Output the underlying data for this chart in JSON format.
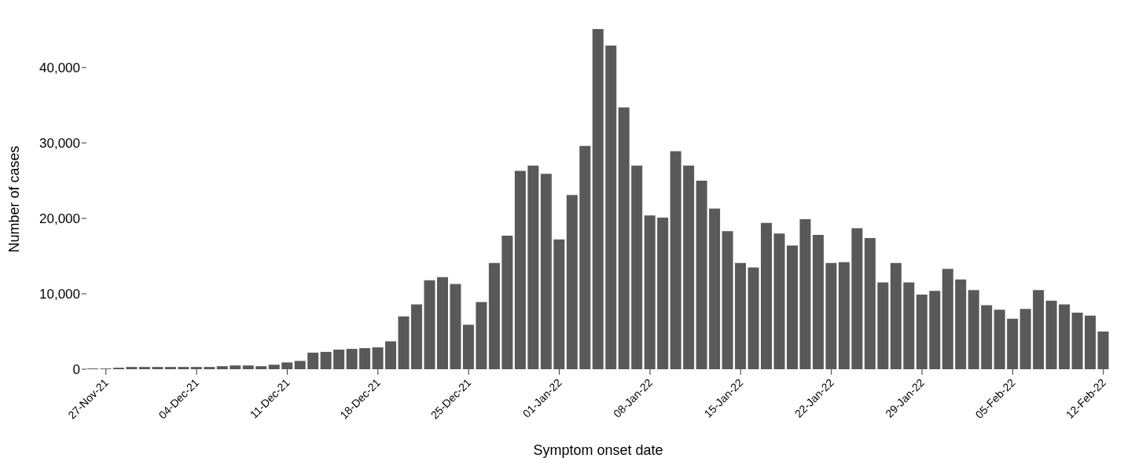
{
  "chart_data": {
    "type": "bar",
    "xlabel": "Symptom onset date",
    "ylabel": "Number of cases",
    "color": "#595959",
    "categories": [
      null,
      "27-Nov-21",
      null,
      null,
      null,
      null,
      null,
      null,
      "04-Dec-21",
      null,
      null,
      null,
      null,
      null,
      null,
      "11-Dec-21",
      null,
      null,
      null,
      null,
      null,
      null,
      "18-Dec-21",
      null,
      null,
      null,
      null,
      null,
      null,
      "25-Dec-21",
      null,
      null,
      null,
      null,
      null,
      null,
      "01-Jan-22",
      null,
      null,
      null,
      null,
      null,
      null,
      "08-Jan-22",
      null,
      null,
      null,
      null,
      null,
      null,
      "15-Jan-22",
      null,
      null,
      null,
      null,
      null,
      null,
      "22-Jan-22",
      null,
      null,
      null,
      null,
      null,
      null,
      "29-Jan-22",
      null,
      null,
      null,
      null,
      null,
      null,
      "05-Feb-22",
      null,
      null,
      null,
      null,
      null,
      null,
      "12-Feb-22"
    ],
    "values": [
      100,
      100,
      200,
      300,
      300,
      300,
      300,
      300,
      300,
      300,
      400,
      500,
      500,
      400,
      600,
      900,
      1100,
      2200,
      2300,
      2600,
      2700,
      2800,
      2900,
      3700,
      7000,
      8600,
      11800,
      12200,
      11300,
      5900,
      8900,
      14100,
      17700,
      26300,
      27000,
      25900,
      17200,
      23100,
      29600,
      45100,
      42900,
      34700,
      27000,
      20400,
      20100,
      28900,
      27000,
      25000,
      21300,
      18300,
      14100,
      13500,
      19400,
      18000,
      16400,
      19900,
      17800,
      14100,
      14200,
      18700,
      17400,
      11500,
      14100,
      11500,
      9900,
      10400,
      13300,
      11900,
      10500,
      8500,
      7900,
      6700,
      8000,
      10500,
      9100,
      8600,
      7500,
      7100,
      5000
    ],
    "ylim": [
      0,
      45100
    ],
    "yticks": [
      0,
      {
        "value": 10000,
        "label": "10,000"
      },
      {
        "value": 20000,
        "label": "20,000"
      },
      {
        "value": 30000,
        "label": "30,000"
      },
      {
        "value": 40000,
        "label": "40,000"
      }
    ],
    "grid": false
  }
}
